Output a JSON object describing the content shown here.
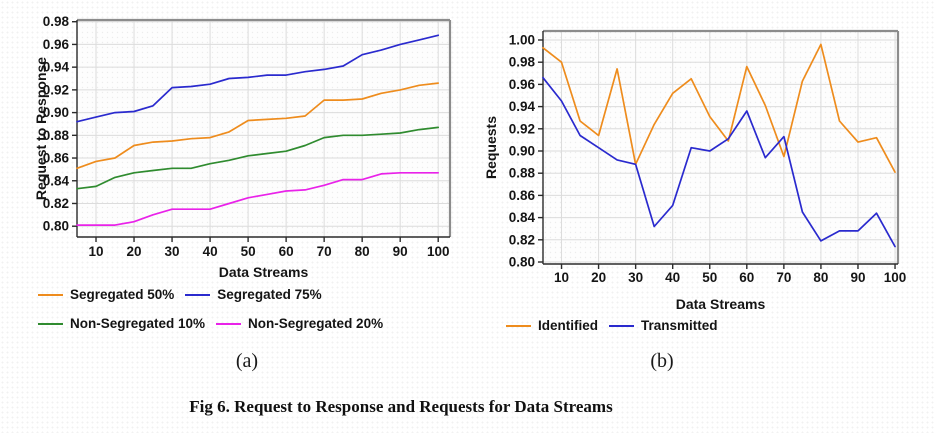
{
  "figure": {
    "caption": "Fig 6. Request to Response and Requests for Data Streams"
  },
  "panels": [
    {
      "label": "(a)"
    },
    {
      "label": "(b)"
    }
  ],
  "chart_data": [
    {
      "id": "a",
      "type": "line",
      "title": "",
      "xlabel": "Data Streams",
      "ylabel": "Request to Response",
      "grid": true,
      "legend_position": "below",
      "x": [
        5,
        10,
        15,
        20,
        25,
        30,
        35,
        40,
        45,
        50,
        55,
        60,
        65,
        70,
        75,
        80,
        85,
        90,
        95,
        100
      ],
      "xticks": [
        "10",
        "20",
        "30",
        "40",
        "50",
        "60",
        "70",
        "80",
        "90",
        "100"
      ],
      "yticks": [
        "0.80",
        "0.82",
        "0.84",
        "0.86",
        "0.88",
        "0.90",
        "0.92",
        "0.94",
        "0.96",
        "0.98"
      ],
      "xlim": [
        5,
        103.1
      ],
      "ylim": [
        0.7905,
        0.9815
      ],
      "series": [
        {
          "name": "Segregated 50%",
          "color": "#ee8c1d",
          "values": [
            0.851,
            0.857,
            0.86,
            0.871,
            0.874,
            0.875,
            0.877,
            0.878,
            0.883,
            0.893,
            0.894,
            0.895,
            0.897,
            0.911,
            0.911,
            0.912,
            0.917,
            0.92,
            0.924,
            0.926
          ]
        },
        {
          "name": "Segregated 75%",
          "color": "#2a2ace",
          "values": [
            0.892,
            0.896,
            0.9,
            0.901,
            0.906,
            0.922,
            0.923,
            0.925,
            0.93,
            0.931,
            0.933,
            0.933,
            0.936,
            0.938,
            0.941,
            0.951,
            0.955,
            0.96,
            0.964,
            0.968
          ]
        },
        {
          "name": "Non-Segregated 10%",
          "color": "#2f8b2f",
          "values": [
            0.833,
            0.835,
            0.843,
            0.847,
            0.849,
            0.851,
            0.851,
            0.855,
            0.858,
            0.862,
            0.864,
            0.866,
            0.871,
            0.878,
            0.88,
            0.88,
            0.881,
            0.882,
            0.885,
            0.887
          ]
        },
        {
          "name": "Non-Segregated 20%",
          "color": "#e922e9",
          "values": [
            0.801,
            0.801,
            0.801,
            0.804,
            0.81,
            0.815,
            0.815,
            0.815,
            0.82,
            0.825,
            0.828,
            0.831,
            0.832,
            0.836,
            0.841,
            0.841,
            0.846,
            0.847,
            0.847,
            0.847
          ]
        }
      ],
      "legend_rows": [
        [
          0,
          1
        ],
        [
          2,
          3
        ]
      ]
    },
    {
      "id": "b",
      "type": "line",
      "title": "",
      "xlabel": "Data Streams",
      "ylabel": "Requests",
      "grid": true,
      "legend_position": "below",
      "x": [
        5,
        10,
        15,
        20,
        25,
        30,
        35,
        40,
        45,
        50,
        55,
        60,
        65,
        70,
        75,
        80,
        85,
        90,
        95,
        100
      ],
      "xticks": [
        "10",
        "20",
        "30",
        "40",
        "50",
        "60",
        "70",
        "80",
        "90",
        "100"
      ],
      "yticks": [
        "0.80",
        "0.82",
        "0.84",
        "0.86",
        "0.88",
        "0.90",
        "0.92",
        "0.94",
        "0.96",
        "0.98",
        "1.00"
      ],
      "xlim": [
        5,
        100.8
      ],
      "ylim": [
        0.7982,
        1.0081
      ],
      "series": [
        {
          "name": "Identified",
          "color": "#ee8c1d",
          "values": [
            0.993,
            0.98,
            0.927,
            0.914,
            0.974,
            0.888,
            0.924,
            0.952,
            0.965,
            0.931,
            0.909,
            0.976,
            0.941,
            0.895,
            0.963,
            0.996,
            0.927,
            0.908,
            0.912,
            0.881
          ]
        },
        {
          "name": "Transmitted",
          "color": "#2a2ace",
          "values": [
            0.966,
            0.945,
            0.914,
            0.903,
            0.892,
            0.888,
            0.832,
            0.851,
            0.903,
            0.9,
            0.911,
            0.936,
            0.894,
            0.913,
            0.845,
            0.819,
            0.828,
            0.828,
            0.844,
            0.814
          ]
        }
      ],
      "legend_rows": [
        [
          0,
          1
        ]
      ]
    }
  ]
}
